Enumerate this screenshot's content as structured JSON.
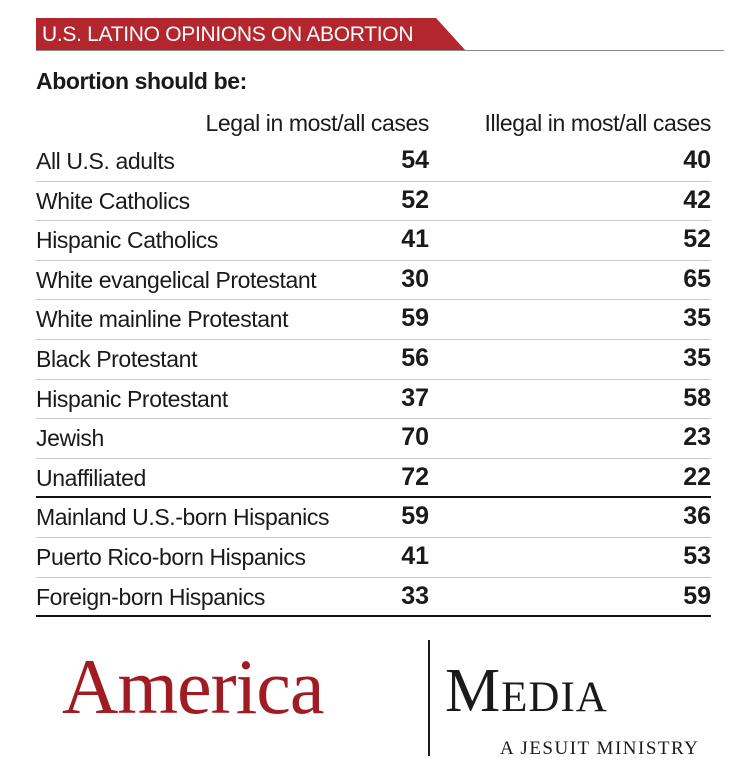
{
  "banner_title": "U.S. LATINO OPINIONS ON ABORTION",
  "colors": {
    "banner": "#b3262d",
    "brand_red": "#a01c22",
    "text": "#1a1a1a"
  },
  "chart_data": {
    "type": "table",
    "title": "U.S. LATINO OPINIONS ON ABORTION",
    "subtitle": "Abortion should be:",
    "columns": [
      "Legal in most/all cases",
      "Illegal in most/all cases"
    ],
    "rows": [
      {
        "label": "All U.S. adults",
        "values": [
          "54",
          "40"
        ]
      },
      {
        "label": "White Catholics",
        "values": [
          "52",
          "42"
        ]
      },
      {
        "label": "Hispanic Catholics",
        "values": [
          "41",
          "52"
        ]
      },
      {
        "label": "White evangelical Protestant",
        "values": [
          "30",
          "65"
        ]
      },
      {
        "label": "White mainline Protestant",
        "values": [
          "59",
          "35"
        ]
      },
      {
        "label": "Black Protestant",
        "values": [
          "56",
          "35"
        ]
      },
      {
        "label": "Hispanic Protestant",
        "values": [
          "37",
          "58"
        ]
      },
      {
        "label": "Jewish",
        "values": [
          "70",
          "23"
        ]
      },
      {
        "label": "Unaffiliated",
        "values": [
          "72",
          "22"
        ]
      },
      {
        "label": "Mainland U.S.-born Hispanics",
        "values": [
          "59",
          "36"
        ]
      },
      {
        "label": "Puerto Rico-born Hispanics",
        "values": [
          "41",
          "53"
        ]
      },
      {
        "label": "Foreign-born Hispanics",
        "values": [
          "33",
          "59"
        ]
      }
    ]
  },
  "logo": {
    "left_word": "America",
    "right_word": "Media",
    "tagline": "A JESUIT MINISTRY"
  }
}
